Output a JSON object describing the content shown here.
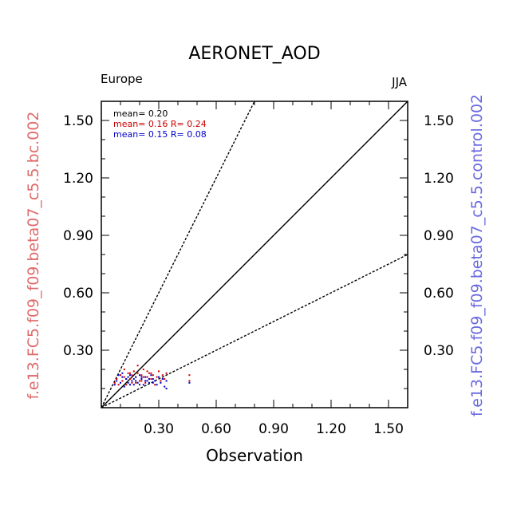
{
  "chart_data": {
    "type": "scatter",
    "title": "AERONET_AOD",
    "region_label": "Europe",
    "season_label": "JJA",
    "xlabel": "Observation",
    "ylabel_left": "f.e13.FC5.f09_f09.beta07_c5.5.bc.002",
    "ylabel_right": "f.e13.FC5.f09_f09.beta07_c5.5.control.002",
    "xlim": [
      0,
      1.6
    ],
    "ylim": [
      0,
      1.6
    ],
    "xticks": [
      "0.30",
      "0.60",
      "0.90",
      "1.20",
      "1.50"
    ],
    "yticks": [
      "0.30",
      "0.60",
      "0.90",
      "1.20",
      "1.50"
    ],
    "reference_lines": [
      {
        "kind": "solid",
        "slope": 1
      },
      {
        "kind": "dashed",
        "slope": 2
      },
      {
        "kind": "dashed",
        "slope": 0.5
      }
    ],
    "stats": [
      {
        "text": "mean= 0.20",
        "color": "#000000"
      },
      {
        "text": "mean= 0.16 R= 0.24",
        "color": "#cc0000"
      },
      {
        "text": "mean= 0.15 R= 0.08",
        "color": "#0000cc"
      }
    ],
    "series": [
      {
        "name": "f.e13.FC5.f09_f09.beta07_c5.5.bc.002",
        "color": "#cc0000",
        "points": [
          [
            0.07,
            0.13
          ],
          [
            0.08,
            0.15
          ],
          [
            0.09,
            0.12
          ],
          [
            0.1,
            0.17
          ],
          [
            0.11,
            0.14
          ],
          [
            0.12,
            0.16
          ],
          [
            0.13,
            0.12
          ],
          [
            0.14,
            0.18
          ],
          [
            0.15,
            0.15
          ],
          [
            0.16,
            0.13
          ],
          [
            0.17,
            0.19
          ],
          [
            0.18,
            0.16
          ],
          [
            0.19,
            0.22
          ],
          [
            0.2,
            0.14
          ],
          [
            0.21,
            0.17
          ],
          [
            0.22,
            0.2
          ],
          [
            0.23,
            0.13
          ],
          [
            0.24,
            0.16
          ],
          [
            0.25,
            0.18
          ],
          [
            0.26,
            0.15
          ],
          [
            0.27,
            0.17
          ],
          [
            0.28,
            0.12
          ],
          [
            0.29,
            0.16
          ],
          [
            0.3,
            0.19
          ],
          [
            0.31,
            0.14
          ],
          [
            0.32,
            0.17
          ],
          [
            0.33,
            0.15
          ],
          [
            0.34,
            0.18
          ],
          [
            0.46,
            0.17
          ],
          [
            0.46,
            0.14
          ],
          [
            0.12,
            0.2
          ],
          [
            0.15,
            0.18
          ],
          [
            0.18,
            0.13
          ],
          [
            0.21,
            0.14
          ],
          [
            0.24,
            0.19
          ],
          [
            0.19,
            0.18
          ],
          [
            0.16,
            0.17
          ],
          [
            0.13,
            0.15
          ],
          [
            0.22,
            0.16
          ],
          [
            0.26,
            0.18
          ]
        ]
      },
      {
        "name": "f.e13.FC5.f09_f09.beta07_c5.5.control.002",
        "color": "#0000cc",
        "points": [
          [
            0.07,
            0.12
          ],
          [
            0.08,
            0.14
          ],
          [
            0.09,
            0.17
          ],
          [
            0.1,
            0.13
          ],
          [
            0.11,
            0.16
          ],
          [
            0.12,
            0.11
          ],
          [
            0.13,
            0.15
          ],
          [
            0.14,
            0.13
          ],
          [
            0.15,
            0.17
          ],
          [
            0.16,
            0.14
          ],
          [
            0.17,
            0.12
          ],
          [
            0.18,
            0.16
          ],
          [
            0.19,
            0.13
          ],
          [
            0.2,
            0.17
          ],
          [
            0.21,
            0.15
          ],
          [
            0.22,
            0.12
          ],
          [
            0.23,
            0.16
          ],
          [
            0.24,
            0.14
          ],
          [
            0.25,
            0.13
          ],
          [
            0.26,
            0.17
          ],
          [
            0.27,
            0.15
          ],
          [
            0.28,
            0.14
          ],
          [
            0.29,
            0.12
          ],
          [
            0.3,
            0.16
          ],
          [
            0.31,
            0.13
          ],
          [
            0.32,
            0.15
          ],
          [
            0.33,
            0.11
          ],
          [
            0.34,
            0.14
          ],
          [
            0.34,
            0.1
          ],
          [
            0.46,
            0.13
          ],
          [
            0.11,
            0.18
          ],
          [
            0.14,
            0.16
          ],
          [
            0.17,
            0.15
          ],
          [
            0.2,
            0.12
          ],
          [
            0.23,
            0.14
          ],
          [
            0.27,
            0.13
          ],
          [
            0.15,
            0.12
          ],
          [
            0.18,
            0.14
          ],
          [
            0.21,
            0.16
          ],
          [
            0.25,
            0.15
          ]
        ]
      }
    ]
  }
}
